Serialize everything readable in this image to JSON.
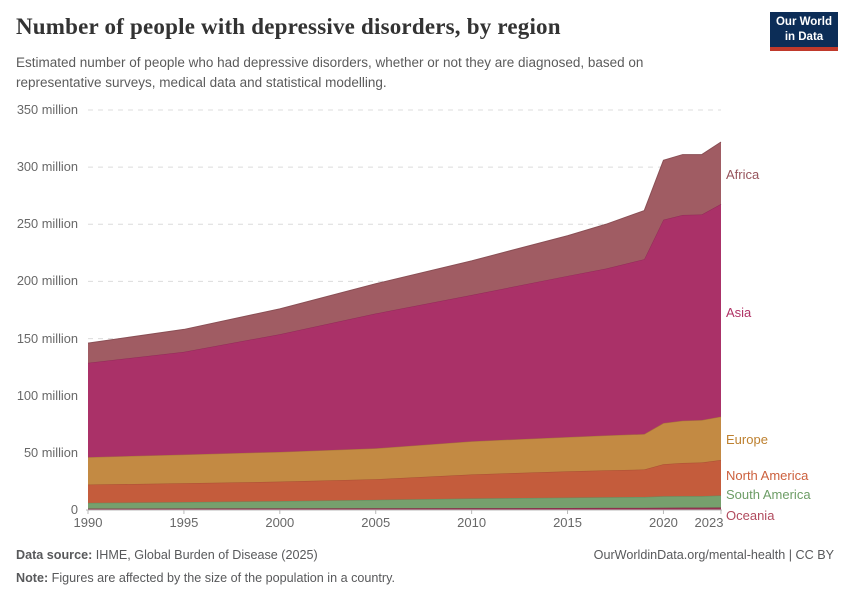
{
  "header": {
    "title": "Number of people with depressive disorders, by region",
    "subtitle": "Estimated number of people who had depressive disorders, whether or not they are diagnosed, based on representative surveys, medical data and statistical modelling.",
    "logo": {
      "line1": "Our World",
      "line2": "in Data",
      "bg_color": "#0c2d57",
      "accent_color": "#c0392b"
    }
  },
  "chart_data": {
    "type": "area",
    "stacked": true,
    "title": "Number of people with depressive disorders, by region",
    "xlabel": "",
    "ylabel": "",
    "unit": "million people",
    "grid": "horizontal-dashed",
    "legend_position": "right-inline-labels",
    "x": [
      1990,
      1995,
      2000,
      2005,
      2010,
      2015,
      2017,
      2019,
      2020,
      2021,
      2022,
      2023
    ],
    "xlim": [
      1990,
      2023
    ],
    "ylim": [
      0,
      350
    ],
    "yticks": [
      {
        "value": 0,
        "label": "0"
      },
      {
        "value": 50,
        "label": "50 million"
      },
      {
        "value": 100,
        "label": "100 million"
      },
      {
        "value": 150,
        "label": "150 million"
      },
      {
        "value": 200,
        "label": "200 million"
      },
      {
        "value": 250,
        "label": "250 million"
      },
      {
        "value": 300,
        "label": "300 million"
      },
      {
        "value": 350,
        "label": "350 million"
      }
    ],
    "xticks": [
      1990,
      1995,
      2000,
      2005,
      2010,
      2015,
      2020,
      2023
    ],
    "series": [
      {
        "name": "Oceania",
        "color": "#963351",
        "label_color": "#b14b5e",
        "values": [
          1.2,
          1.3,
          1.4,
          1.5,
          1.6,
          1.8,
          1.9,
          1.9,
          2.0,
          2.1,
          2.1,
          2.2
        ]
      },
      {
        "name": "South America",
        "color": "#76a06d",
        "label_color": "#6d9d66",
        "values": [
          5.0,
          5.6,
          6.4,
          7.4,
          8.5,
          9.0,
          9.3,
          9.5,
          10.0,
          10.0,
          10.0,
          10.5
        ]
      },
      {
        "name": "North America",
        "color": "#c45c3c",
        "label_color": "#cc603d",
        "values": [
          16.0,
          16.5,
          17.0,
          18.0,
          21.0,
          23.0,
          23.5,
          24.0,
          28.0,
          29.0,
          29.5,
          31.0
        ]
      },
      {
        "name": "Europe",
        "color": "#c38a43",
        "label_color": "#bd802f",
        "values": [
          24.0,
          25.0,
          26.0,
          27.0,
          29.0,
          30.0,
          30.5,
          31.0,
          36.0,
          37.0,
          37.0,
          38.0
        ]
      },
      {
        "name": "Asia",
        "color": "#aa3168",
        "label_color": "#b03366",
        "values": [
          82.5,
          90.0,
          103.0,
          118.0,
          128.0,
          141.0,
          146.0,
          153.0,
          178.0,
          180.0,
          180.0,
          186.0
        ]
      },
      {
        "name": "Africa",
        "color": "#a05c63",
        "label_color": "#97545c",
        "values": [
          17.3,
          19.6,
          22.2,
          26.1,
          29.9,
          35.2,
          38.8,
          42.6,
          52.0,
          52.9,
          52.4,
          54.3
        ]
      }
    ]
  },
  "footer": {
    "source_label": "Data source:",
    "source_text": " IHME, Global Burden of Disease (2025)",
    "right_text": "OurWorldinData.org/mental-health | CC BY",
    "note_label": "Note:",
    "note_text": " Figures are affected by the size of the population in a country."
  }
}
